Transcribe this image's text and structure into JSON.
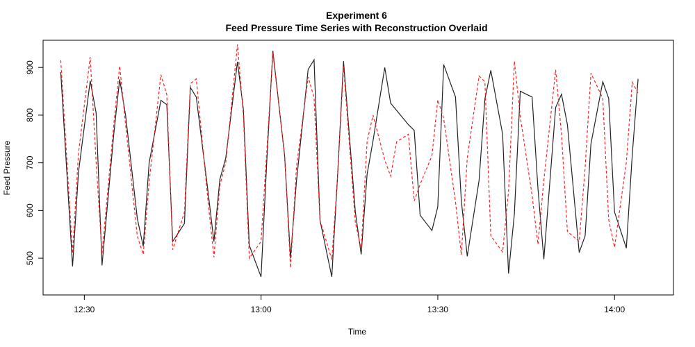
{
  "chart_data": {
    "type": "line",
    "title": "Experiment 6",
    "subtitle": "Feed Pressure Time Series with Reconstruction Overlaid",
    "xlabel": "Time",
    "ylabel": "Feed Pressure",
    "xlim": [
      "12:23",
      "14:10"
    ],
    "ylim": [
      423,
      957
    ],
    "x_ticks": [
      "12:30",
      "13:00",
      "13:30",
      "14:00"
    ],
    "y_ticks": [
      500,
      600,
      700,
      800,
      900
    ],
    "grid": false,
    "legend": "none",
    "series": [
      {
        "style": "solid",
        "color": "#222222",
        "x": [
          "12:26",
          "12:28",
          "12:29",
          "12:31",
          "12:32",
          "12:33",
          "12:35",
          "12:36",
          "12:37",
          "12:39",
          "12:40",
          "12:41",
          "12:43",
          "12:44",
          "12:45",
          "12:47",
          "12:48",
          "12:49",
          "12:51",
          "12:52",
          "12:53",
          "12:54",
          "12:56",
          "12:57",
          "12:58",
          "13:00",
          "13:01",
          "13:02",
          "13:04",
          "13:05",
          "13:06",
          "13:08",
          "13:09",
          "13:10",
          "13:12",
          "13:13",
          "13:14",
          "13:16",
          "13:17",
          "13:18",
          "13:19",
          "13:21",
          "13:22",
          "13:23",
          "13:25",
          "13:26",
          "13:27",
          "13:29",
          "13:30",
          "13:31",
          "13:33",
          "13:34",
          "13:35",
          "13:37",
          "13:38",
          "13:39",
          "13:41",
          "13:42",
          "13:43",
          "13:44",
          "13:46",
          "13:47",
          "13:48",
          "13:50",
          "13:51",
          "13:52",
          "13:54",
          "13:55",
          "13:56",
          "13:58",
          "13:59",
          "14:00",
          "14:02",
          "14:03",
          "14:04"
        ],
        "y": [
          890,
          483,
          680,
          872,
          805,
          485,
          760,
          875,
          800,
          583,
          525,
          700,
          831,
          822,
          535,
          573,
          858,
          838,
          640,
          535,
          665,
          710,
          912,
          812,
          527,
          461,
          710,
          935,
          715,
          500,
          660,
          896,
          916,
          580,
          461,
          675,
          913,
          597,
          508,
          676,
          746,
          900,
          825,
          810,
          780,
          768,
          590,
          558,
          608,
          906,
          838,
          620,
          504,
          663,
          834,
          894,
          760,
          468,
          593,
          850,
          838,
          647,
          498,
          816,
          844,
          780,
          512,
          547,
          740,
          870,
          835,
          597,
          521,
          716,
          876
        ]
      },
      {
        "style": "dashed",
        "color": "#ff2020",
        "x": [
          "12:26",
          "12:28",
          "12:29",
          "12:31",
          "12:32",
          "12:33",
          "12:35",
          "12:36",
          "12:37",
          "12:39",
          "12:40",
          "12:41",
          "12:43",
          "12:44",
          "12:45",
          "12:47",
          "12:48",
          "12:49",
          "12:51",
          "12:52",
          "12:53",
          "12:54",
          "12:56",
          "12:57",
          "12:58",
          "13:00",
          "13:01",
          "13:02",
          "13:04",
          "13:05",
          "13:06",
          "13:08",
          "13:09",
          "13:10",
          "13:12",
          "13:13",
          "13:14",
          "13:16",
          "13:17",
          "13:18",
          "13:19",
          "13:21",
          "13:22",
          "13:23",
          "13:25",
          "13:26",
          "13:27",
          "13:29",
          "13:30",
          "13:31",
          "13:33",
          "13:34",
          "13:35",
          "13:37",
          "13:38",
          "13:39",
          "13:41",
          "13:42",
          "13:43",
          "13:44",
          "13:46",
          "13:47",
          "13:48",
          "13:50",
          "13:51",
          "13:52",
          "13:54",
          "13:55",
          "13:56",
          "13:58",
          "13:59",
          "14:00",
          "14:02",
          "14:03",
          "14:04"
        ],
        "y": [
          915,
          510,
          720,
          922,
          702,
          510,
          780,
          903,
          780,
          546,
          508,
          660,
          885,
          843,
          518,
          597,
          866,
          876,
          620,
          502,
          653,
          700,
          948,
          800,
          500,
          535,
          730,
          930,
          718,
          480,
          690,
          880,
          837,
          580,
          497,
          672,
          902,
          575,
          518,
          745,
          800,
          706,
          672,
          744,
          760,
          620,
          655,
          715,
          832,
          793,
          618,
          507,
          710,
          882,
          870,
          547,
          513,
          640,
          913,
          797,
          632,
          529,
          663,
          895,
          760,
          556,
          535,
          690,
          888,
          835,
          581,
          523,
          701,
          869,
          846
        ]
      }
    ]
  }
}
